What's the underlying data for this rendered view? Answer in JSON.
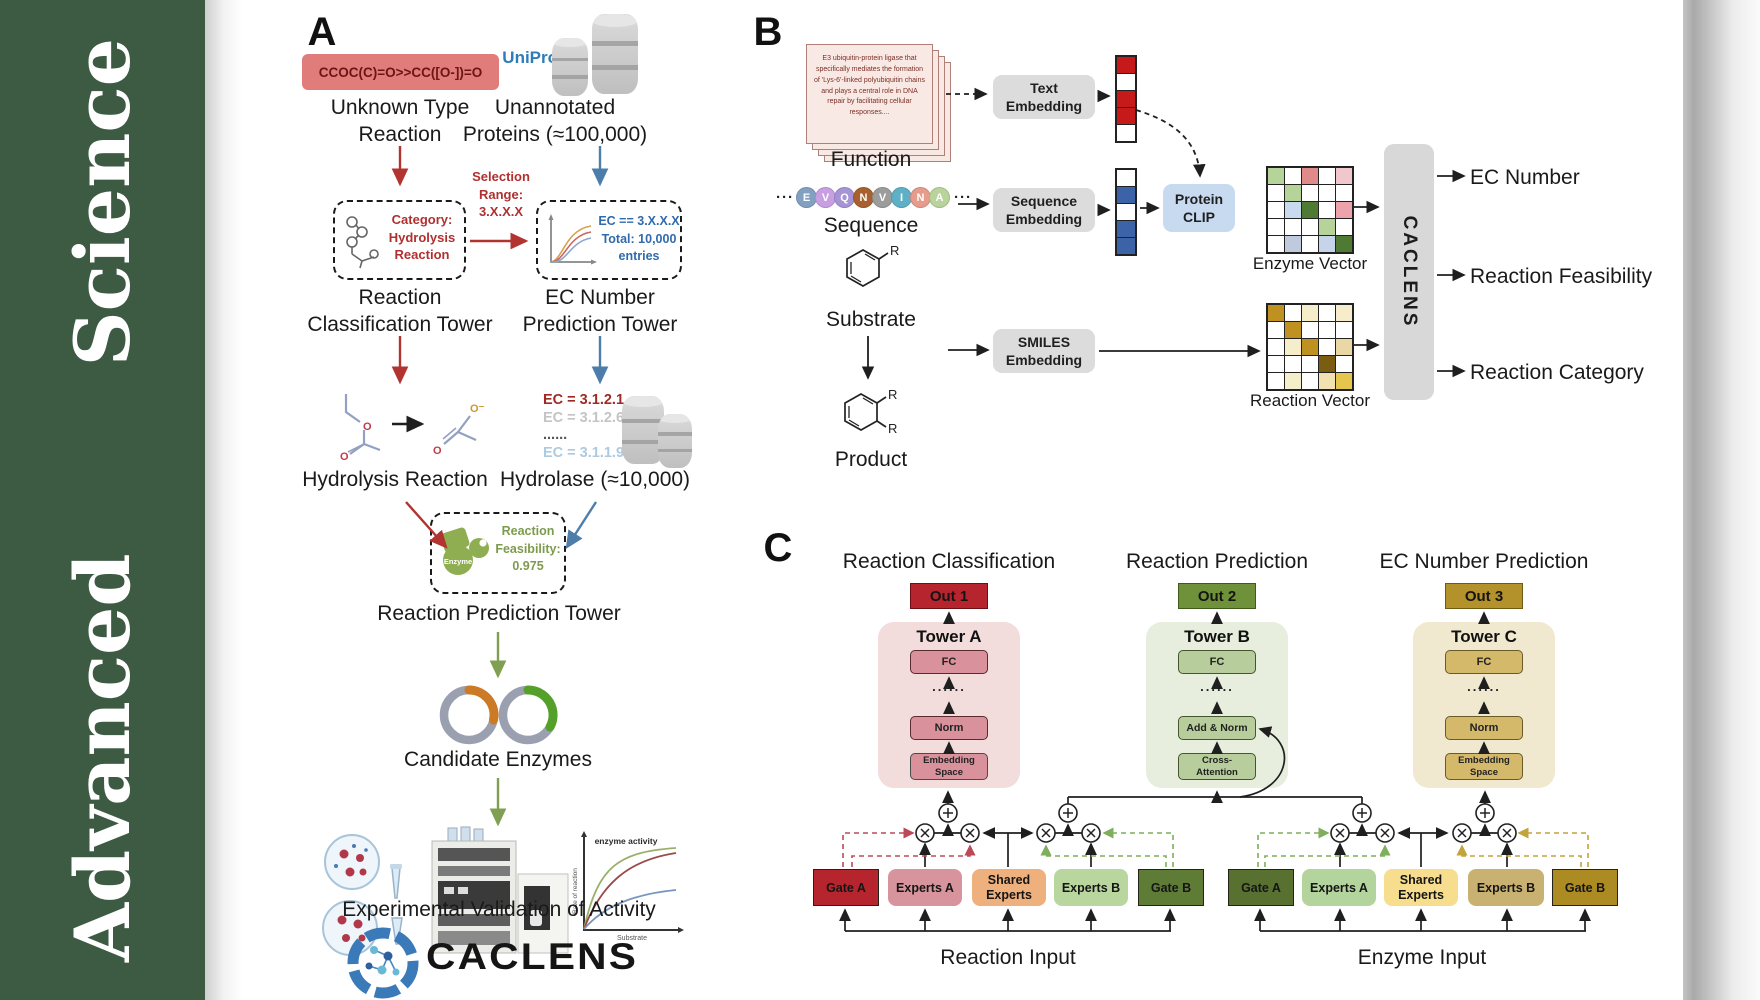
{
  "journal": {
    "top": "Science",
    "bottom": "Advanced",
    "banner_color": "#3c5b42"
  },
  "a": {
    "label": "A",
    "smiles": "CCOC(C)=O>>CC([O-])=O",
    "unknown": "Unknown Type\nReaction",
    "uniprot": "UniProt",
    "unannotated": "Unannotated\nProteins (≈100,000)",
    "selection": "Selection\nRange:\n3.X.X.X",
    "category": "Category:\nHydrolysis\nReaction",
    "ec_filter": "EC == 3.X.X.X\nTotal: 10,000\nentries",
    "rct": "Reaction\nClassification Tower",
    "ecpt": "EC Number\nPrediction Tower",
    "ec_list": [
      {
        "t": "EC = 3.1.2.1",
        "c": "#9e2a25"
      },
      {
        "t": "EC = 3.1.2.6",
        "c": "#c4c4c4"
      },
      {
        "t": "......",
        "c": "#555555"
      },
      {
        "t": "EC = 3.1.1.9",
        "c": "#aecade"
      }
    ],
    "hydrolysis": "Hydrolysis Reaction",
    "hydrolase": "Hydrolase (≈10,000)",
    "enzyme": "Enzyme",
    "feasibility": "Reaction\nFeasibility:\n0.975",
    "rpt": "Reaction Prediction Tower",
    "candidates": "Candidate Enzymes",
    "plot": {
      "y": "Rate of reaction",
      "x": "Substrate",
      "note": "enzyme activity"
    },
    "validation": "Experimental Validation of Activity",
    "logo": "CACLENS"
  },
  "b": {
    "label": "B",
    "card": "E3 ubiquitin-protein ligase that specifically mediates the formation of 'Lys-6'-linked polyubiquitin chains and plays a central role in DNA repair by facilitating cellular responses....",
    "function": "Function",
    "ell": "···",
    "residues": [
      {
        "l": "E",
        "c": "#82a0c2"
      },
      {
        "l": "V",
        "c": "#c79fe2"
      },
      {
        "l": "Q",
        "c": "#a694d6"
      },
      {
        "l": "N",
        "c": "#a8612e"
      },
      {
        "l": "V",
        "c": "#9c9c9c"
      },
      {
        "l": "I",
        "c": "#5fb0c6"
      },
      {
        "l": "N",
        "c": "#e79b8b"
      },
      {
        "l": "A",
        "c": "#b8d49b"
      }
    ],
    "sequence": "Sequence",
    "substrate": "Substrate",
    "product": "Product",
    "r": "R",
    "text_emb": "Text\nEmbedding",
    "seq_emb": "Sequence\nEmbedding",
    "smiles_emb": "SMILES\nEmbedding",
    "clip": "Protein\nCLIP",
    "text_vec": [
      "#c61a1a",
      "#ffffff",
      "#c61a1a",
      "#c61a1a",
      "#ffffff"
    ],
    "seq_vec": [
      "#ffffff",
      "#3c63a8",
      "#ffffff",
      "#3c63a8",
      "#3c63a8"
    ],
    "enzyme_vec_label": "Enzyme Vector",
    "enzyme_vec": [
      "#b6d49a",
      "#ffffff",
      "#e08a8a",
      "#ffffff",
      "#f2c6cd",
      "#ffffff",
      "#b6d49a",
      "#ffffff",
      "#ffffff",
      "#ffffff",
      "#ffffff",
      "#c9d9ee",
      "#4e7a33",
      "#ffffff",
      "#eba4ad",
      "#ffffff",
      "#ffffff",
      "#ffffff",
      "#b6d49a",
      "#ffffff",
      "#ffffff",
      "#bfcbdd",
      "#ffffff",
      "#c5d4ea",
      "#4e7a33"
    ],
    "reaction_vec_label": "Reaction Vector",
    "reaction_vec": [
      "#bf9120",
      "#ffffff",
      "#f6eecb",
      "#ffffff",
      "#f6eecb",
      "#ffffff",
      "#bf9120",
      "#ffffff",
      "#ffffff",
      "#ffffff",
      "#ffffff",
      "#f6eecb",
      "#bf9120",
      "#ffffff",
      "#ead8a4",
      "#ffffff",
      "#ffffff",
      "#ffffff",
      "#7a5d10",
      "#ffffff",
      "#ffffff",
      "#f6eecb",
      "#ffffff",
      "#f2e2b2",
      "#e6c54e"
    ],
    "caclens": "CACLENS",
    "outputs": [
      "EC Number",
      "Reaction Feasibility",
      "Reaction Category"
    ]
  },
  "c": {
    "label": "C",
    "titles": [
      "Reaction Classification",
      "Reaction Prediction",
      "EC Number Prediction"
    ],
    "outs": [
      {
        "t": "Out 1",
        "bg": "#b6242e",
        "bd": "#6f0f16"
      },
      {
        "t": "Out 2",
        "bg": "#6f9139",
        "bd": "#3f5a1a"
      },
      {
        "t": "Out 3",
        "bg": "#b3912b",
        "bd": "#6f5a12"
      }
    ],
    "towers": [
      {
        "title": "Tower A",
        "bg": "#f3dcdc",
        "box": "#d9929c",
        "bd": "#5a2a30",
        "layers": [
          "FC",
          "Norm",
          "Embedding\nSpace"
        ],
        "dots": "......"
      },
      {
        "title": "Tower B",
        "bg": "#e7eedd",
        "box": "#b7cd9c",
        "bd": "#46552f",
        "layers": [
          "FC",
          "Add & Norm",
          "Cross-\nAttention"
        ],
        "dots": "......"
      },
      {
        "title": "Tower C",
        "bg": "#f1e9cf",
        "box": "#d5b96b",
        "bd": "#6a5a28",
        "layers": [
          "FC",
          "Norm",
          "Embedding\nSpace"
        ],
        "dots": "......"
      }
    ],
    "left": {
      "gate_a": "Gate A",
      "experts_a": "Experts A",
      "shared": "Shared\nExperts",
      "experts_b": "Experts B",
      "gate_b": "Gate B",
      "input": "Reaction Input",
      "colors": {
        "gate_a": "#b6242e",
        "experts_a": "#d7949d",
        "shared": "#eeb07c",
        "experts_b": "#b9d69f",
        "gate_b": "#5e7c36"
      }
    },
    "right": {
      "gate_a": "Gate A",
      "experts_a": "Experts A",
      "shared": "Shared\nExperts",
      "experts_b": "Experts B",
      "gate_b": "Gate B",
      "input": "Enzyme Input",
      "colors": {
        "gate_a": "#587130",
        "experts_a": "#b3d49d",
        "shared": "#f6de8e",
        "experts_b": "#c9b172",
        "gate_b": "#ac8b22"
      }
    }
  }
}
